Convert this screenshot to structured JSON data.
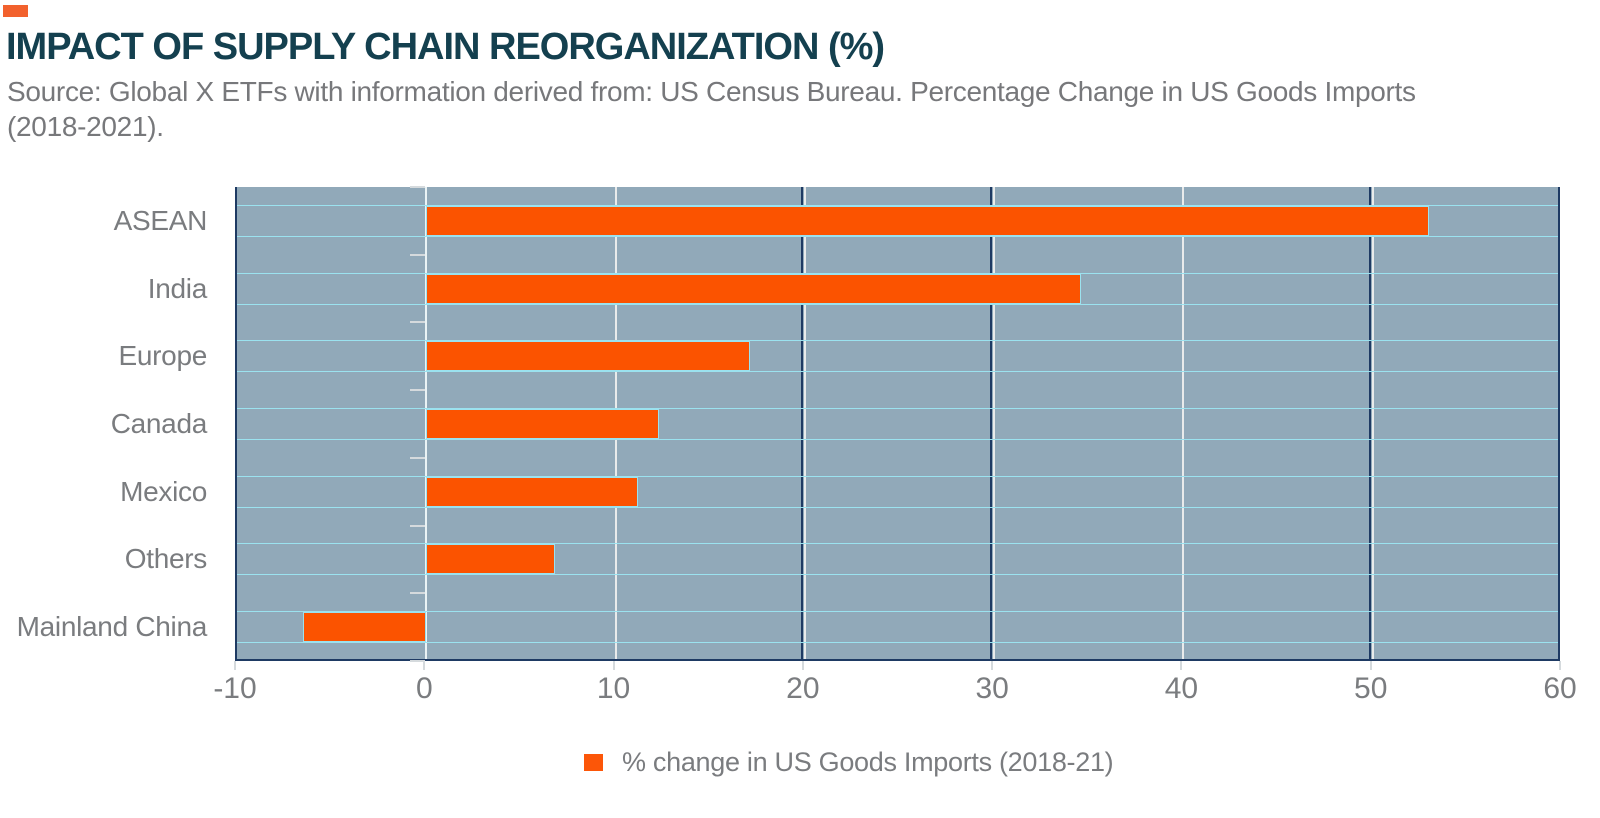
{
  "page": {
    "accent_dash_color": "#F2612D",
    "title": "IMPACT OF SUPPLY CHAIN REORGANIZATION (%)",
    "title_color": "#14404F",
    "source_line1": "Source: Global X ETFs with information derived from: US Census Bureau. Percentage Change in US Goods Imports",
    "source_line2": "(2018-2021).",
    "text_gray": "#77787B"
  },
  "chart_data": {
    "type": "bar",
    "orientation": "horizontal",
    "title": "IMPACT OF SUPPLY CHAIN REORGANIZATION (%)",
    "categories": [
      "ASEAN",
      "India",
      "Europe",
      "Canada",
      "Mexico",
      "Others",
      "Mainland China"
    ],
    "values": [
      53.0,
      34.6,
      17.1,
      12.3,
      11.2,
      6.8,
      -6.5
    ],
    "series_name": "% change in US Goods Imports (2018-21)",
    "xlabel": "",
    "ylabel": "",
    "xlim": [
      -10,
      60
    ],
    "xticks": [
      -10,
      0,
      10,
      20,
      30,
      40,
      50,
      60
    ],
    "grid": "vertical-major",
    "colors": {
      "bar": "#FB5300",
      "bar_border": "#9BE2EF",
      "plot_bg": "#91A9B9",
      "axis_line": "#1E3A63",
      "gridline": "#E9EBEB",
      "tick_mark": "#D5DADD",
      "tick_label": "#7A7C7F",
      "category_label": "#7A7C7F"
    },
    "navy_gridlines": [
      20,
      30,
      50
    ],
    "legend": {
      "label": "% change in US Goods Imports (2018-21)",
      "swatch_color": "#FC5608",
      "position": "bottom"
    }
  }
}
